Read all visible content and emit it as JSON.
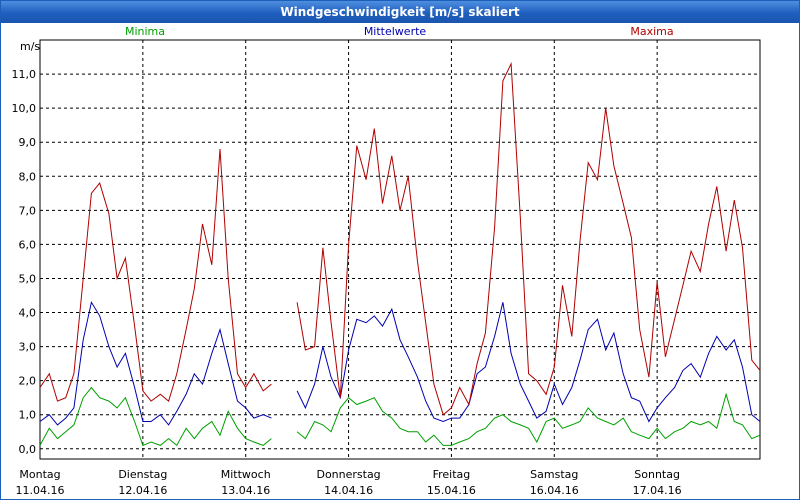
{
  "window": {
    "title": "Windgeschwindigkeit [m/s] skaliert"
  },
  "chart_data": {
    "type": "line",
    "ylabel": "m/s",
    "ylim": [
      -0.3,
      12.0
    ],
    "yticks": [
      "0,0",
      "1,0",
      "2,0",
      "3,0",
      "4,0",
      "5,0",
      "6,0",
      "7,0",
      "8,0",
      "9,0",
      "10,0",
      "11,0"
    ],
    "xlim": [
      0,
      7
    ],
    "xticks": [
      {
        "day": "Montag",
        "date": "11.04.16"
      },
      {
        "day": "Dienstag",
        "date": "12.04.16"
      },
      {
        "day": "Mittwoch",
        "date": "13.04.16"
      },
      {
        "day": "Donnerstag",
        "date": "14.04.16"
      },
      {
        "day": "Freitag",
        "date": "15.04.16"
      },
      {
        "day": "Samstag",
        "date": "16.04.16"
      },
      {
        "day": "Sonntag",
        "date": "17.04.16"
      }
    ],
    "grid": true,
    "legend_position": "top",
    "series": [
      {
        "name": "Minima",
        "color": "#00a000",
        "x": [
          0,
          0.09,
          0.17,
          0.25,
          0.33,
          0.42,
          0.5,
          0.58,
          0.67,
          0.75,
          0.83,
          0.92,
          1,
          1.08,
          1.17,
          1.25,
          1.33,
          1.42,
          1.5,
          1.58,
          1.67,
          1.75,
          1.83,
          1.92,
          2,
          2.08,
          2.17,
          2.25,
          2.33,
          2.42,
          2.5,
          2.58,
          2.67,
          2.75,
          2.83,
          2.92,
          3,
          3.08,
          3.17,
          3.25,
          3.33,
          3.42,
          3.5,
          3.58,
          3.67,
          3.75,
          3.83,
          3.92,
          4,
          4.08,
          4.17,
          4.25,
          4.33,
          4.42,
          4.5,
          4.58,
          4.67,
          4.75,
          4.83,
          4.92,
          5,
          5.08,
          5.17,
          5.25,
          5.33,
          5.42,
          5.5,
          5.58,
          5.67,
          5.75,
          5.83,
          5.92,
          6,
          6.08,
          6.17,
          6.25,
          6.33,
          6.42,
          6.5,
          6.58,
          6.67,
          6.75,
          6.83,
          6.92,
          7
        ],
        "y": [
          0.1,
          0.6,
          0.3,
          0.5,
          0.7,
          1.5,
          1.8,
          1.5,
          1.4,
          1.2,
          1.5,
          0.8,
          0.1,
          0.2,
          0.1,
          0.3,
          0.1,
          0.6,
          0.3,
          0.6,
          0.8,
          0.4,
          1.1,
          0.6,
          0.3,
          0.2,
          0.1,
          0.3,
          null,
          null,
          0.5,
          0.3,
          0.8,
          0.7,
          0.5,
          1.2,
          1.5,
          1.3,
          1.4,
          1.5,
          1.1,
          0.9,
          0.6,
          0.5,
          0.5,
          0.2,
          0.4,
          0.1,
          0.1,
          0.2,
          0.3,
          0.5,
          0.6,
          0.9,
          1.0,
          0.8,
          0.7,
          0.6,
          0.2,
          0.8,
          0.9,
          0.6,
          0.7,
          0.8,
          1.2,
          0.9,
          0.8,
          0.7,
          0.9,
          0.5,
          0.4,
          0.3,
          0.6,
          0.3,
          0.5,
          0.6,
          0.8,
          0.7,
          0.8,
          0.6,
          1.6,
          0.8,
          0.7,
          0.3,
          0.4
        ]
      },
      {
        "name": "Mittelwerte",
        "color": "#0000b0",
        "x": [
          0,
          0.09,
          0.17,
          0.25,
          0.33,
          0.42,
          0.5,
          0.58,
          0.67,
          0.75,
          0.83,
          0.92,
          1,
          1.08,
          1.17,
          1.25,
          1.33,
          1.42,
          1.5,
          1.58,
          1.67,
          1.75,
          1.83,
          1.92,
          2,
          2.08,
          2.17,
          2.25,
          2.33,
          2.42,
          2.5,
          2.58,
          2.67,
          2.75,
          2.83,
          2.92,
          3,
          3.08,
          3.17,
          3.25,
          3.33,
          3.42,
          3.5,
          3.58,
          3.67,
          3.75,
          3.83,
          3.92,
          4,
          4.08,
          4.17,
          4.25,
          4.33,
          4.42,
          4.5,
          4.58,
          4.67,
          4.75,
          4.83,
          4.92,
          5,
          5.08,
          5.17,
          5.25,
          5.33,
          5.42,
          5.5,
          5.58,
          5.67,
          5.75,
          5.83,
          5.92,
          6,
          6.08,
          6.17,
          6.25,
          6.33,
          6.42,
          6.5,
          6.58,
          6.67,
          6.75,
          6.83,
          6.92,
          7
        ],
        "y": [
          0.8,
          1.0,
          0.7,
          0.9,
          1.2,
          3.2,
          4.3,
          3.9,
          3.0,
          2.4,
          2.8,
          1.8,
          0.8,
          0.8,
          1.0,
          0.7,
          1.1,
          1.6,
          2.2,
          1.9,
          2.8,
          3.5,
          2.5,
          1.4,
          1.2,
          0.9,
          1.0,
          0.9,
          null,
          null,
          1.7,
          1.2,
          1.9,
          3.0,
          2.1,
          1.5,
          2.9,
          3.8,
          3.7,
          3.9,
          3.6,
          4.1,
          3.2,
          2.7,
          2.1,
          1.4,
          0.9,
          0.8,
          0.9,
          0.9,
          1.3,
          2.2,
          2.4,
          3.3,
          4.3,
          2.8,
          1.9,
          1.4,
          0.9,
          1.1,
          1.9,
          1.3,
          1.8,
          2.6,
          3.5,
          3.8,
          2.9,
          3.4,
          2.2,
          1.5,
          1.4,
          0.8,
          1.2,
          1.5,
          1.8,
          2.3,
          2.5,
          2.1,
          2.8,
          3.3,
          2.9,
          3.2,
          2.4,
          1.0,
          0.8
        ]
      },
      {
        "name": "Maxima",
        "color": "#b00000",
        "x": [
          0,
          0.09,
          0.17,
          0.25,
          0.33,
          0.42,
          0.5,
          0.58,
          0.67,
          0.75,
          0.83,
          0.92,
          1,
          1.08,
          1.17,
          1.25,
          1.33,
          1.42,
          1.5,
          1.58,
          1.67,
          1.75,
          1.83,
          1.92,
          2,
          2.08,
          2.17,
          2.25,
          2.33,
          2.42,
          2.5,
          2.58,
          2.67,
          2.75,
          2.83,
          2.92,
          3,
          3.08,
          3.17,
          3.25,
          3.33,
          3.42,
          3.5,
          3.58,
          3.67,
          3.75,
          3.83,
          3.92,
          4,
          4.08,
          4.17,
          4.25,
          4.33,
          4.42,
          4.5,
          4.58,
          4.67,
          4.75,
          4.83,
          4.92,
          5,
          5.08,
          5.17,
          5.25,
          5.33,
          5.42,
          5.5,
          5.58,
          5.67,
          5.75,
          5.83,
          5.92,
          6,
          6.08,
          6.17,
          6.25,
          6.33,
          6.42,
          6.5,
          6.58,
          6.67,
          6.75,
          6.83,
          6.92,
          7
        ],
        "y": [
          1.8,
          2.2,
          1.4,
          1.5,
          2.2,
          5.0,
          7.5,
          7.8,
          6.9,
          5.0,
          5.6,
          3.6,
          1.7,
          1.4,
          1.6,
          1.4,
          2.2,
          3.5,
          4.7,
          6.6,
          5.4,
          8.8,
          5.0,
          2.2,
          1.8,
          2.2,
          1.7,
          1.9,
          null,
          null,
          4.3,
          2.9,
          3.0,
          5.9,
          3.7,
          1.5,
          6.0,
          8.9,
          7.9,
          9.4,
          7.2,
          8.6,
          7.0,
          8.0,
          5.5,
          3.7,
          1.9,
          1.0,
          1.2,
          1.8,
          1.3,
          2.5,
          3.4,
          6.5,
          10.8,
          11.3,
          6.8,
          2.2,
          2.0,
          1.6,
          2.4,
          4.8,
          3.3,
          6.1,
          8.4,
          7.9,
          10.0,
          8.3,
          7.2,
          6.2,
          3.5,
          2.1,
          4.9,
          2.7,
          3.8,
          4.8,
          5.8,
          5.2,
          6.6,
          7.7,
          5.8,
          7.3,
          5.9,
          2.6,
          2.3
        ]
      }
    ]
  }
}
